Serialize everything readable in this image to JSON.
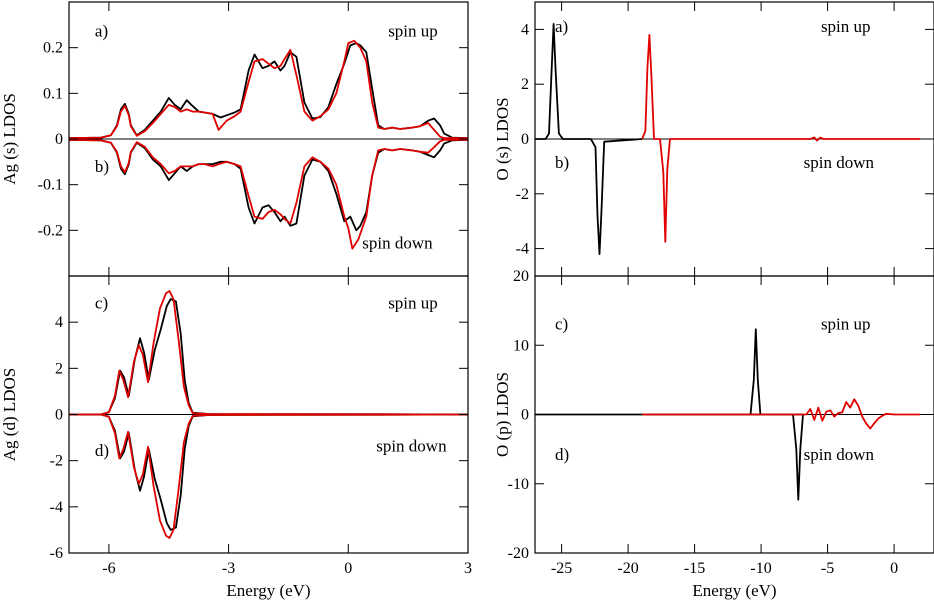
{
  "colors": {
    "black_series": "#000000",
    "red_series": "#e00000"
  },
  "chart_data": [
    {
      "id": "ag-s",
      "type": "line",
      "ylabel": "Ag (s) LDOS",
      "xlabel": "",
      "xlim": [
        -7,
        3
      ],
      "ylim": [
        -0.3,
        0.3
      ],
      "xticks": [
        -6,
        -3,
        0,
        3
      ],
      "xtick_labels": [],
      "yticks": [
        -0.2,
        -0.1,
        0,
        0.1,
        0.2
      ],
      "ytick_labels": [
        "-0.2",
        "-0.1",
        "0",
        "0.1",
        "0.2"
      ],
      "annotations": [
        {
          "text": "a)",
          "x": -6.35,
          "y": 0.225
        },
        {
          "text": "spin up",
          "x": 1.0,
          "y": 0.225
        },
        {
          "text": "b)",
          "x": -6.35,
          "y": -0.072
        },
        {
          "text": "spin down",
          "x": 0.35,
          "y": -0.24
        }
      ],
      "series": [
        {
          "color": "#000000",
          "x": [
            -7.0,
            -6.2,
            -5.95,
            -5.8,
            -5.7,
            -5.6,
            -5.5,
            -5.45,
            -5.3,
            -5.1,
            -4.9,
            -4.7,
            -4.5,
            -4.35,
            -4.2,
            -4.05,
            -3.9,
            -3.75,
            -3.6,
            -3.4,
            -3.2,
            -3.05,
            -2.85,
            -2.7,
            -2.5,
            -2.35,
            -2.15,
            -2.0,
            -1.85,
            -1.7,
            -1.6,
            -1.45,
            -1.3,
            -1.1,
            -0.9,
            -0.7,
            -0.5,
            -0.3,
            -0.1,
            0.05,
            0.2,
            0.3,
            0.45,
            0.6,
            0.75,
            0.9,
            1.1,
            1.3,
            1.6,
            1.8,
            2.0,
            2.15,
            2.3,
            2.4,
            2.6,
            3.0
          ],
          "y": [
            0.002,
            0.003,
            0.008,
            0.03,
            0.065,
            0.077,
            0.055,
            0.03,
            0.008,
            0.02,
            0.04,
            0.06,
            0.09,
            0.075,
            0.065,
            0.085,
            0.072,
            0.06,
            0.058,
            0.055,
            0.047,
            0.052,
            0.058,
            0.065,
            0.15,
            0.185,
            0.155,
            0.16,
            0.17,
            0.15,
            0.16,
            0.19,
            0.18,
            0.08,
            0.045,
            0.048,
            0.07,
            0.12,
            0.165,
            0.205,
            0.21,
            0.205,
            0.19,
            0.11,
            0.03,
            0.022,
            0.025,
            0.022,
            0.025,
            0.028,
            0.04,
            0.045,
            0.03,
            0.012,
            0.003,
            0.002
          ]
        },
        {
          "color": "#e00000",
          "x": [
            -7.0,
            -6.2,
            -5.95,
            -5.8,
            -5.7,
            -5.6,
            -5.5,
            -5.45,
            -5.3,
            -5.1,
            -4.9,
            -4.7,
            -4.5,
            -4.35,
            -4.2,
            -4.05,
            -3.9,
            -3.75,
            -3.6,
            -3.4,
            -3.25,
            -3.05,
            -2.85,
            -2.7,
            -2.5,
            -2.35,
            -2.15,
            -2.0,
            -1.85,
            -1.7,
            -1.6,
            -1.45,
            -1.3,
            -1.1,
            -0.9,
            -0.7,
            -0.5,
            -0.3,
            -0.1,
            0.0,
            0.15,
            0.3,
            0.45,
            0.6,
            0.75,
            0.9,
            1.1,
            1.3,
            1.6,
            1.8,
            2.0,
            2.15,
            2.3,
            2.4,
            2.6,
            3.0
          ],
          "y": [
            0.002,
            0.003,
            0.008,
            0.028,
            0.06,
            0.073,
            0.052,
            0.028,
            0.007,
            0.017,
            0.035,
            0.055,
            0.075,
            0.07,
            0.06,
            0.065,
            0.06,
            0.06,
            0.058,
            0.055,
            0.02,
            0.04,
            0.05,
            0.06,
            0.125,
            0.17,
            0.175,
            0.165,
            0.155,
            0.16,
            0.175,
            0.195,
            0.14,
            0.06,
            0.04,
            0.05,
            0.065,
            0.1,
            0.17,
            0.21,
            0.215,
            0.2,
            0.17,
            0.08,
            0.025,
            0.022,
            0.025,
            0.022,
            0.025,
            0.028,
            0.035,
            0.02,
            0.005,
            0.002,
            0.002,
            0.002
          ]
        },
        {
          "color": "#000000",
          "x": [
            -7.0,
            -6.2,
            -5.95,
            -5.8,
            -5.7,
            -5.6,
            -5.5,
            -5.45,
            -5.3,
            -5.1,
            -4.9,
            -4.7,
            -4.5,
            -4.35,
            -4.2,
            -4.05,
            -3.9,
            -3.75,
            -3.6,
            -3.4,
            -3.2,
            -3.05,
            -2.85,
            -2.7,
            -2.5,
            -2.35,
            -2.15,
            -2.0,
            -1.85,
            -1.7,
            -1.6,
            -1.45,
            -1.3,
            -1.1,
            -0.9,
            -0.7,
            -0.5,
            -0.3,
            -0.1,
            0.05,
            0.2,
            0.3,
            0.45,
            0.6,
            0.75,
            0.9,
            1.1,
            1.3,
            1.6,
            1.8,
            2.0,
            2.15,
            2.3,
            2.4,
            2.6,
            3.0
          ],
          "y": [
            -0.002,
            -0.003,
            -0.008,
            -0.03,
            -0.065,
            -0.077,
            -0.055,
            -0.03,
            -0.008,
            -0.02,
            -0.045,
            -0.06,
            -0.09,
            -0.075,
            -0.06,
            -0.07,
            -0.06,
            -0.055,
            -0.055,
            -0.055,
            -0.05,
            -0.05,
            -0.055,
            -0.065,
            -0.15,
            -0.185,
            -0.15,
            -0.145,
            -0.16,
            -0.18,
            -0.17,
            -0.19,
            -0.185,
            -0.08,
            -0.045,
            -0.05,
            -0.07,
            -0.12,
            -0.18,
            -0.17,
            -0.2,
            -0.19,
            -0.16,
            -0.08,
            -0.03,
            -0.022,
            -0.025,
            -0.022,
            -0.025,
            -0.028,
            -0.035,
            -0.04,
            -0.025,
            -0.01,
            -0.003,
            -0.002
          ]
        },
        {
          "color": "#e00000",
          "x": [
            -7.0,
            -6.2,
            -5.95,
            -5.8,
            -5.7,
            -5.6,
            -5.5,
            -5.45,
            -5.3,
            -5.1,
            -4.9,
            -4.7,
            -4.5,
            -4.35,
            -4.2,
            -4.05,
            -3.9,
            -3.75,
            -3.6,
            -3.4,
            -3.25,
            -3.05,
            -2.85,
            -2.7,
            -2.5,
            -2.35,
            -2.15,
            -2.0,
            -1.85,
            -1.7,
            -1.6,
            -1.45,
            -1.3,
            -1.1,
            -0.9,
            -0.7,
            -0.5,
            -0.3,
            -0.1,
            0.0,
            0.1,
            0.25,
            0.45,
            0.6,
            0.75,
            0.9,
            1.1,
            1.3,
            1.6,
            1.8,
            2.0,
            2.15,
            2.3,
            2.4,
            2.6,
            3.0
          ],
          "y": [
            -0.002,
            -0.003,
            -0.008,
            -0.028,
            -0.06,
            -0.073,
            -0.052,
            -0.028,
            -0.007,
            -0.017,
            -0.04,
            -0.055,
            -0.075,
            -0.07,
            -0.06,
            -0.06,
            -0.06,
            -0.055,
            -0.055,
            -0.06,
            -0.055,
            -0.05,
            -0.055,
            -0.06,
            -0.125,
            -0.17,
            -0.175,
            -0.16,
            -0.155,
            -0.165,
            -0.175,
            -0.185,
            -0.14,
            -0.06,
            -0.04,
            -0.05,
            -0.065,
            -0.1,
            -0.17,
            -0.195,
            -0.24,
            -0.22,
            -0.17,
            -0.08,
            -0.025,
            -0.022,
            -0.025,
            -0.022,
            -0.025,
            -0.028,
            -0.03,
            -0.018,
            -0.005,
            -0.002,
            -0.002,
            -0.002
          ]
        }
      ]
    },
    {
      "id": "ag-d",
      "type": "line",
      "ylabel": "Ag (d) LDOS",
      "xlabel": "Energy (eV)",
      "xlim": [
        -7,
        3
      ],
      "ylim": [
        -6,
        6
      ],
      "xticks": [
        -6,
        -3,
        0,
        3
      ],
      "xtick_labels": [
        "-6",
        "-3",
        "0",
        "3"
      ],
      "yticks": [
        -6,
        -4,
        -2,
        0,
        2,
        4
      ],
      "ytick_labels": [
        "-6",
        "-4",
        "-2",
        "0",
        "2",
        "4"
      ],
      "annotations": [
        {
          "text": "c)",
          "x": -6.35,
          "y": 4.6
        },
        {
          "text": "spin up",
          "x": 1.0,
          "y": 4.6
        },
        {
          "text": "d)",
          "x": -6.35,
          "y": -1.8
        },
        {
          "text": "spin down",
          "x": 0.7,
          "y": -1.6
        }
      ],
      "series": [
        {
          "color": "#000000",
          "x": [
            -7.0,
            -6.2,
            -6.0,
            -5.85,
            -5.72,
            -5.62,
            -5.5,
            -5.35,
            -5.22,
            -5.12,
            -5.0,
            -4.85,
            -4.7,
            -4.55,
            -4.45,
            -4.32,
            -4.2,
            -4.1,
            -4.0,
            -3.9,
            -3.5,
            3.0
          ],
          "y": [
            0.0,
            0.0,
            0.1,
            0.7,
            1.9,
            1.6,
            0.8,
            2.4,
            3.3,
            2.7,
            1.5,
            2.8,
            3.7,
            4.7,
            5.0,
            4.9,
            3.5,
            1.5,
            0.5,
            0.08,
            0.02,
            0.0
          ]
        },
        {
          "color": "#e00000",
          "x": [
            -7.0,
            -6.2,
            -6.0,
            -5.85,
            -5.74,
            -5.64,
            -5.52,
            -5.37,
            -5.25,
            -5.15,
            -5.02,
            -4.88,
            -4.72,
            -4.57,
            -4.48,
            -4.38,
            -4.25,
            -4.12,
            -4.0,
            -3.9,
            -3.5,
            3.0
          ],
          "y": [
            0.0,
            0.0,
            0.1,
            0.8,
            1.9,
            1.5,
            0.75,
            2.3,
            3.0,
            2.6,
            1.4,
            3.1,
            4.6,
            5.25,
            5.35,
            5.0,
            3.2,
            1.2,
            0.4,
            0.06,
            0.02,
            0.0
          ]
        },
        {
          "color": "#000000",
          "x": [
            -7.0,
            -6.2,
            -6.0,
            -5.85,
            -5.72,
            -5.62,
            -5.5,
            -5.35,
            -5.22,
            -5.12,
            -5.0,
            -4.85,
            -4.7,
            -4.55,
            -4.45,
            -4.32,
            -4.2,
            -4.1,
            -4.0,
            -3.9,
            -3.5,
            3.0
          ],
          "y": [
            0.0,
            0.0,
            -0.1,
            -0.7,
            -1.9,
            -1.6,
            -0.8,
            -2.4,
            -3.3,
            -2.7,
            -1.5,
            -2.8,
            -3.7,
            -4.7,
            -5.0,
            -4.9,
            -3.5,
            -1.5,
            -0.5,
            -0.08,
            -0.02,
            0.0
          ]
        },
        {
          "color": "#e00000",
          "x": [
            -7.0,
            -6.2,
            -6.0,
            -5.85,
            -5.74,
            -5.64,
            -5.52,
            -5.37,
            -5.25,
            -5.15,
            -5.02,
            -4.88,
            -4.72,
            -4.57,
            -4.48,
            -4.38,
            -4.25,
            -4.12,
            -4.0,
            -3.9,
            -3.5,
            3.0
          ],
          "y": [
            0.0,
            0.0,
            -0.1,
            -0.8,
            -1.9,
            -1.5,
            -0.75,
            -2.3,
            -3.0,
            -2.6,
            -1.4,
            -3.1,
            -4.6,
            -5.25,
            -5.35,
            -5.0,
            -3.2,
            -1.2,
            -0.4,
            -0.06,
            -0.02,
            0.0
          ]
        }
      ]
    },
    {
      "id": "o-s",
      "type": "line",
      "ylabel": "O (s) LDOS",
      "xlabel": "",
      "xlim": [
        -27,
        3
      ],
      "ylim": [
        -5,
        5
      ],
      "xticks": [
        -25,
        -20,
        -15,
        -10,
        -5,
        0
      ],
      "xtick_labels": [],
      "yticks": [
        -4,
        -2,
        0,
        2,
        4
      ],
      "ytick_labels": [
        "-4",
        "-2",
        "0",
        "2",
        "4"
      ],
      "annotations": [
        {
          "text": "a)",
          "x": -25.5,
          "y": 3.9
        },
        {
          "text": "spin up",
          "x": -5.5,
          "y": 3.9
        },
        {
          "text": "b)",
          "x": -25.5,
          "y": -1.05
        },
        {
          "text": "spin down",
          "x": -6.8,
          "y": -1.05
        }
      ],
      "series": [
        {
          "color": "#000000",
          "x": [
            -27.0,
            -26.2,
            -25.95,
            -25.75,
            -25.6,
            -25.45,
            -25.2,
            -24.9,
            -22.8,
            -22.45,
            -22.3,
            -22.15,
            -22.0,
            -21.8,
            -18.95
          ],
          "y": [
            0.0,
            0.0,
            0.2,
            2.5,
            4.2,
            2.5,
            0.2,
            0.0,
            0.0,
            -0.3,
            -2.8,
            -4.2,
            -2.6,
            -0.1,
            0.0
          ]
        },
        {
          "color": "#e00000",
          "x": [
            -18.95,
            -18.7,
            -18.55,
            -18.4,
            -18.25,
            -18.05,
            -17.6,
            -17.35,
            -17.2,
            -17.05,
            -16.85,
            -6.3,
            -6.0,
            -5.8,
            -5.55,
            -5.3,
            1.95
          ],
          "y": [
            0.0,
            0.3,
            2.6,
            3.8,
            2.3,
            0.0,
            0.0,
            -1.2,
            -3.75,
            -1.1,
            0.0,
            0.0,
            0.06,
            -0.06,
            0.05,
            0.0,
            0.0
          ]
        }
      ]
    },
    {
      "id": "o-p",
      "type": "line",
      "ylabel": "O (p) LDOS",
      "xlabel": "Energy (eV)",
      "xlim": [
        -27,
        3
      ],
      "ylim": [
        -20,
        20
      ],
      "xticks": [
        -25,
        -20,
        -15,
        -10,
        -5,
        0
      ],
      "xtick_labels": [
        "-25",
        "-20",
        "-15",
        "-10",
        "-5",
        "0"
      ],
      "yticks": [
        -20,
        -10,
        0,
        10,
        20
      ],
      "ytick_labels": [
        "-20",
        "-10",
        "0",
        "10",
        "20"
      ],
      "annotations": [
        {
          "text": "c)",
          "x": -25.5,
          "y": 12.3
        },
        {
          "text": "spin up",
          "x": -5.5,
          "y": 12.3
        },
        {
          "text": "d)",
          "x": -25.5,
          "y": -6.6
        },
        {
          "text": "spin down",
          "x": -6.8,
          "y": -6.6
        }
      ],
      "series": [
        {
          "color": "#000000",
          "x": [
            -27.0,
            -10.8,
            -10.55,
            -10.4,
            -10.25,
            -10.05,
            -9.8,
            -7.6,
            -7.35,
            -7.2,
            -7.05,
            -6.85,
            -18.95
          ],
          "y": [
            0.0,
            0.0,
            5.0,
            12.3,
            5.0,
            0.0,
            0.0,
            0.0,
            -5.0,
            -12.3,
            -5.0,
            0.0,
            0.0
          ]
        },
        {
          "color": "#e00000",
          "x": [
            -18.95,
            -6.6,
            -6.3,
            -6.0,
            -5.7,
            -5.4,
            -5.1,
            -4.8,
            -4.5,
            -4.2,
            -3.9,
            -3.6,
            -3.3,
            -3.0,
            -2.7,
            -2.4,
            -2.1,
            -1.8,
            -1.5,
            -1.2,
            -0.9,
            -0.6,
            0.0,
            1.95
          ],
          "y": [
            0.0,
            0.0,
            0.8,
            -0.8,
            1.0,
            -0.9,
            0.4,
            0.6,
            -0.3,
            0.2,
            0.3,
            1.8,
            1.0,
            2.2,
            1.3,
            -0.3,
            -1.3,
            -2.0,
            -1.3,
            -0.6,
            -0.2,
            0.1,
            0.0,
            0.0
          ]
        }
      ]
    }
  ]
}
